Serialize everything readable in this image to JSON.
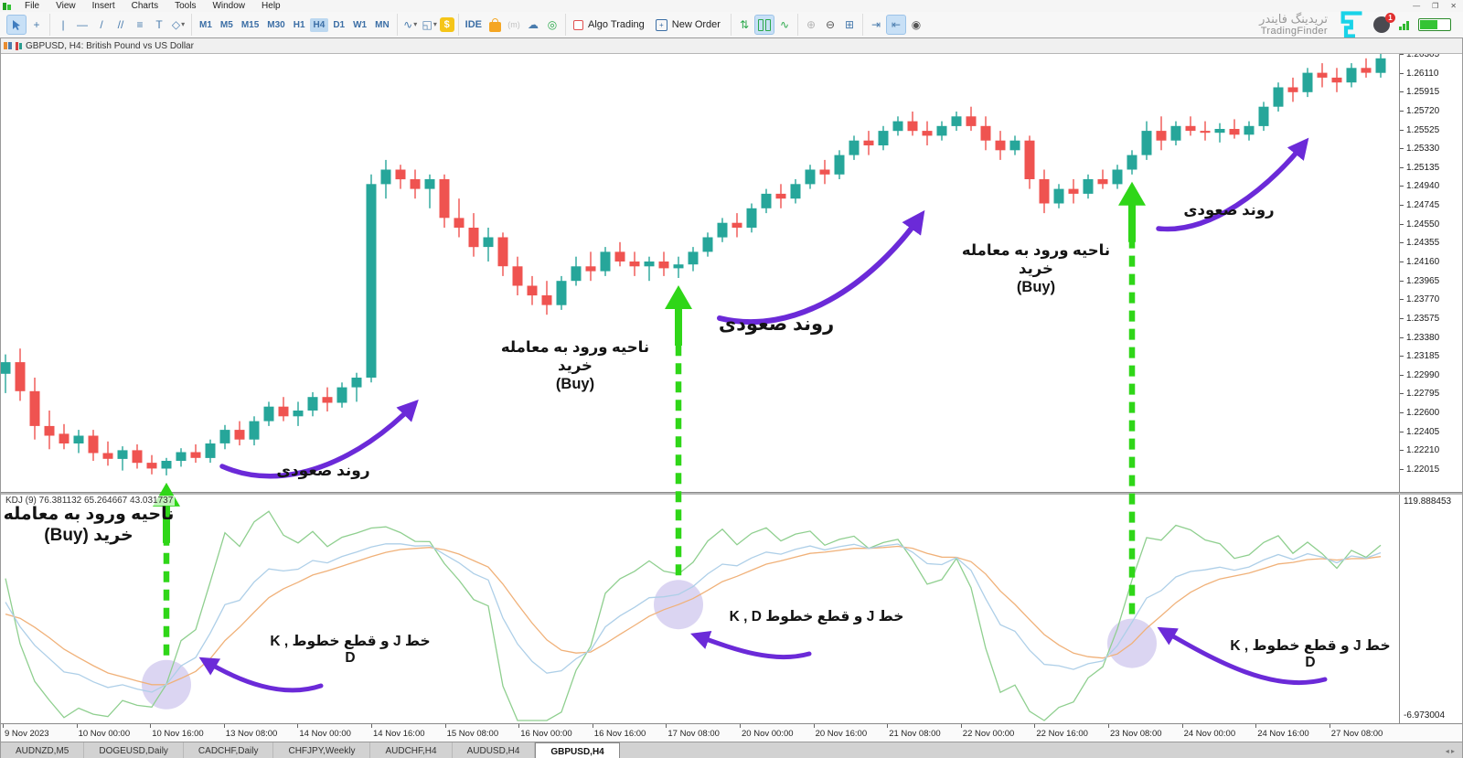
{
  "menu": {
    "items": [
      "File",
      "View",
      "Insert",
      "Charts",
      "Tools",
      "Window",
      "Help"
    ]
  },
  "window_controls": {
    "minimize": "—",
    "restore": "❐",
    "close": "✕"
  },
  "toolbar": {
    "timeframes": [
      "M1",
      "M5",
      "M15",
      "M30",
      "H1",
      "H4",
      "D1",
      "W1",
      "MN"
    ],
    "active_timeframe": "H4",
    "ide_label": "IDE",
    "m_label": "(m)",
    "algo_trading_label": "Algo Trading",
    "new_order_label": "New Order"
  },
  "icons": {
    "crosshair": "+",
    "vertical_line": "|",
    "horizontal_line": "—",
    "trendline": "/",
    "channel": "//",
    "fibonacci": "≡",
    "text_tool": "T",
    "shapes": "◇",
    "dropdown": "▾",
    "chart_type": "∿",
    "indicator_window": "◱",
    "dollar": "$",
    "cloud": "☁",
    "globe": "◎",
    "order_plus": "+",
    "tick_sort": "⇅",
    "line_mode": "∿",
    "zoom_in": "⊕",
    "zoom_out": "⊖",
    "grid": "⊞",
    "shift_right": "⇥",
    "shift_left": "⇤",
    "camera": "◉"
  },
  "brand": {
    "name_fa": "تریدینگ فایندر",
    "name_en": "TradingFinder",
    "notification_count": "1"
  },
  "chart": {
    "title": "GBPUSD, H4:  British Pound vs US Dollar",
    "kdj_label": "KDJ (9) 76.381132 65.264667 43.031737",
    "indicator_axis": {
      "top": "119.888453",
      "bottom": "-6.973004"
    },
    "price_axis": [
      "1.26305",
      "1.26110",
      "1.25915",
      "1.25720",
      "1.25525",
      "1.25330",
      "1.25135",
      "1.24940",
      "1.24745",
      "1.24550",
      "1.24355",
      "1.24160",
      "1.23965",
      "1.23770",
      "1.23575",
      "1.23380",
      "1.23185",
      "1.22990",
      "1.22795",
      "1.22600",
      "1.22405",
      "1.22210",
      "1.22015"
    ],
    "time_axis": [
      "9 Nov 2023",
      "10 Nov 00:00",
      "10 Nov 16:00",
      "13 Nov 08:00",
      "14 Nov 00:00",
      "14 Nov 16:00",
      "15 Nov 08:00",
      "16 Nov 00:00",
      "16 Nov 16:00",
      "17 Nov 08:00",
      "20 Nov 00:00",
      "20 Nov 16:00",
      "21 Nov 08:00",
      "22 Nov 00:00",
      "22 Nov 16:00",
      "23 Nov 08:00",
      "24 Nov 00:00",
      "24 Nov 16:00",
      "27 Nov 08:00"
    ]
  },
  "tabs": {
    "items": [
      "AUDNZD,M5",
      "DOGEUSD,Daily",
      "CADCHF,Daily",
      "CHFJPY,Weekly",
      "AUDCHF,H4",
      "AUDUSD,H4",
      "GBPUSD,H4"
    ],
    "active": "GBPUSD,H4"
  },
  "annotations": {
    "entry_zone_1": {
      "line1": "ناحیه ورود به معامله",
      "line2": "خرید (Buy)"
    },
    "entry_zone_2": {
      "line1": "ناحیه ورود به معامله خرید",
      "line2": "(Buy)"
    },
    "entry_zone_3": {
      "line1": "ناحیه ورود به معامله خرید",
      "line2": "(Buy)"
    },
    "uptrend_1": "روند صعودی",
    "uptrend_2": "روند صعودی",
    "uptrend_3": "روند صعودی",
    "kd_cross_1": "خط J و قطع خطوط K , D",
    "kd_cross_2": "خط J و قطع خطوط K , D",
    "kd_cross_3": "خط J و قطع خطوط K , D"
  },
  "colors": {
    "bull": "#26a69a",
    "bear": "#ef5350",
    "k_line": "#aecfe8",
    "d_line": "#f0b179",
    "j_line": "#8fcf8f",
    "arrow_green": "#2fd618",
    "arrow_purple": "#6b2ad8",
    "signal_circle": "rgba(170,155,225,0.42)",
    "accent_blue": "#3f7cbf",
    "brand_cyan": "#19d3e8"
  },
  "chart_data": {
    "type": "candlestick",
    "symbol": "GBPUSD",
    "timeframe": "H4",
    "title": "GBPUSD, H4: British Pound vs US Dollar",
    "price_range": [
      1.22015,
      1.26305
    ],
    "indicator": {
      "name": "KDJ",
      "period": 9,
      "current_k": 76.381132,
      "current_d": 65.264667,
      "current_j": 43.031737,
      "range": [
        -6.973004,
        119.888453
      ],
      "series_names": [
        "K",
        "D",
        "J"
      ]
    },
    "signal_indices": [
      11,
      46,
      77
    ],
    "candles": [
      [
        1.23,
        1.232,
        1.228,
        1.2312
      ],
      [
        1.2312,
        1.2326,
        1.2272,
        1.2282
      ],
      [
        1.2282,
        1.2296,
        1.2232,
        1.2246
      ],
      [
        1.2246,
        1.2262,
        1.2222,
        1.2236
      ],
      [
        1.2238,
        1.2248,
        1.2222,
        1.2228
      ],
      [
        1.2228,
        1.2242,
        1.2218,
        1.2236
      ],
      [
        1.2236,
        1.2242,
        1.221,
        1.2218
      ],
      [
        1.2218,
        1.223,
        1.2205,
        1.2212
      ],
      [
        1.2212,
        1.2225,
        1.22,
        1.2221
      ],
      [
        1.2221,
        1.2227,
        1.2202,
        1.2208
      ],
      [
        1.2208,
        1.2216,
        1.2196,
        1.2202
      ],
      [
        1.2202,
        1.2213,
        1.2195,
        1.221
      ],
      [
        1.221,
        1.2223,
        1.2204,
        1.2219
      ],
      [
        1.2219,
        1.2227,
        1.2208,
        1.2213
      ],
      [
        1.2213,
        1.2232,
        1.2208,
        1.2228
      ],
      [
        1.2228,
        1.2247,
        1.2222,
        1.2242
      ],
      [
        1.2242,
        1.2251,
        1.2226,
        1.2232
      ],
      [
        1.2232,
        1.2256,
        1.2226,
        1.2251
      ],
      [
        1.2251,
        1.2271,
        1.2246,
        1.2266
      ],
      [
        1.2266,
        1.2276,
        1.2251,
        1.2256
      ],
      [
        1.2256,
        1.2271,
        1.2246,
        1.2262
      ],
      [
        1.2262,
        1.2281,
        1.2256,
        1.2276
      ],
      [
        1.2276,
        1.2286,
        1.2261,
        1.227
      ],
      [
        1.227,
        1.2291,
        1.2265,
        1.2286
      ],
      [
        1.2286,
        1.2301,
        1.2271,
        1.2296
      ],
      [
        1.2296,
        1.2506,
        1.2291,
        1.2496
      ],
      [
        1.2496,
        1.2521,
        1.2481,
        1.2511
      ],
      [
        1.2511,
        1.2516,
        1.2491,
        1.2501
      ],
      [
        1.2501,
        1.2511,
        1.2481,
        1.2491
      ],
      [
        1.2491,
        1.2506,
        1.2471,
        1.2501
      ],
      [
        1.2501,
        1.2506,
        1.2451,
        1.2461
      ],
      [
        1.2461,
        1.2481,
        1.2441,
        1.2451
      ],
      [
        1.2451,
        1.2466,
        1.2421,
        1.2431
      ],
      [
        1.2431,
        1.2451,
        1.2416,
        1.2441
      ],
      [
        1.2441,
        1.2446,
        1.2401,
        1.2411
      ],
      [
        1.2411,
        1.2421,
        1.2381,
        1.2391
      ],
      [
        1.2391,
        1.2401,
        1.2371,
        1.2381
      ],
      [
        1.2381,
        1.2396,
        1.2361,
        1.2371
      ],
      [
        1.2371,
        1.2401,
        1.2366,
        1.2396
      ],
      [
        1.2396,
        1.2421,
        1.2391,
        1.2411
      ],
      [
        1.2411,
        1.2426,
        1.2396,
        1.2406
      ],
      [
        1.2406,
        1.2431,
        1.2401,
        1.2426
      ],
      [
        1.2426,
        1.2436,
        1.2411,
        1.2416
      ],
      [
        1.2416,
        1.2426,
        1.2401,
        1.2411
      ],
      [
        1.2411,
        1.2421,
        1.2396,
        1.2416
      ],
      [
        1.2416,
        1.2426,
        1.2401,
        1.2409
      ],
      [
        1.2409,
        1.2421,
        1.2399,
        1.2413
      ],
      [
        1.2413,
        1.2431,
        1.2406,
        1.2426
      ],
      [
        1.2426,
        1.2446,
        1.2421,
        1.2441
      ],
      [
        1.2441,
        1.2461,
        1.2436,
        1.2456
      ],
      [
        1.2456,
        1.2466,
        1.2441,
        1.2451
      ],
      [
        1.2451,
        1.2476,
        1.2446,
        1.2471
      ],
      [
        1.2471,
        1.2491,
        1.2466,
        1.2486
      ],
      [
        1.2486,
        1.2496,
        1.2471,
        1.2481
      ],
      [
        1.2481,
        1.2501,
        1.2476,
        1.2496
      ],
      [
        1.2496,
        1.2516,
        1.2491,
        1.2511
      ],
      [
        1.2511,
        1.2521,
        1.2496,
        1.2506
      ],
      [
        1.2506,
        1.2531,
        1.2501,
        1.2526
      ],
      [
        1.2526,
        1.2546,
        1.2521,
        1.2541
      ],
      [
        1.2541,
        1.2551,
        1.2526,
        1.2536
      ],
      [
        1.2536,
        1.2556,
        1.2531,
        1.2551
      ],
      [
        1.2551,
        1.2566,
        1.2546,
        1.2561
      ],
      [
        1.2561,
        1.2571,
        1.2546,
        1.2551
      ],
      [
        1.2551,
        1.2561,
        1.2536,
        1.2546
      ],
      [
        1.2546,
        1.2561,
        1.2541,
        1.2556
      ],
      [
        1.2556,
        1.2571,
        1.2551,
        1.2566
      ],
      [
        1.2566,
        1.2576,
        1.2551,
        1.2556
      ],
      [
        1.2556,
        1.2566,
        1.2531,
        1.2541
      ],
      [
        1.2541,
        1.2551,
        1.2521,
        1.2531
      ],
      [
        1.2531,
        1.2546,
        1.2526,
        1.2541
      ],
      [
        1.2541,
        1.2546,
        1.2491,
        1.2501
      ],
      [
        1.2501,
        1.2511,
        1.2466,
        1.2476
      ],
      [
        1.2476,
        1.2496,
        1.2471,
        1.2491
      ],
      [
        1.2491,
        1.2501,
        1.2476,
        1.2486
      ],
      [
        1.2486,
        1.2506,
        1.2481,
        1.2501
      ],
      [
        1.2501,
        1.2511,
        1.2491,
        1.2496
      ],
      [
        1.2496,
        1.2516,
        1.2491,
        1.2511
      ],
      [
        1.2511,
        1.2531,
        1.2506,
        1.2526
      ],
      [
        1.2526,
        1.2561,
        1.2521,
        1.2551
      ],
      [
        1.2551,
        1.2566,
        1.2531,
        1.2541
      ],
      [
        1.2541,
        1.2561,
        1.2536,
        1.2556
      ],
      [
        1.2556,
        1.2566,
        1.2546,
        1.2551
      ],
      [
        1.2551,
        1.2561,
        1.2541,
        1.2549
      ],
      [
        1.2549,
        1.2559,
        1.2539,
        1.2553
      ],
      [
        1.2553,
        1.2563,
        1.2543,
        1.2547
      ],
      [
        1.2547,
        1.2561,
        1.2541,
        1.2556
      ],
      [
        1.2556,
        1.2581,
        1.2551,
        1.2576
      ],
      [
        1.2576,
        1.2601,
        1.2571,
        1.2596
      ],
      [
        1.2596,
        1.2606,
        1.2581,
        1.2591
      ],
      [
        1.2591,
        1.2616,
        1.2586,
        1.2611
      ],
      [
        1.2611,
        1.2621,
        1.2596,
        1.2606
      ],
      [
        1.2606,
        1.2616,
        1.2591,
        1.2601
      ],
      [
        1.2601,
        1.2621,
        1.2596,
        1.2616
      ],
      [
        1.2616,
        1.2626,
        1.2606,
        1.2611
      ],
      [
        1.2611,
        1.2631,
        1.2606,
        1.2626
      ]
    ]
  }
}
